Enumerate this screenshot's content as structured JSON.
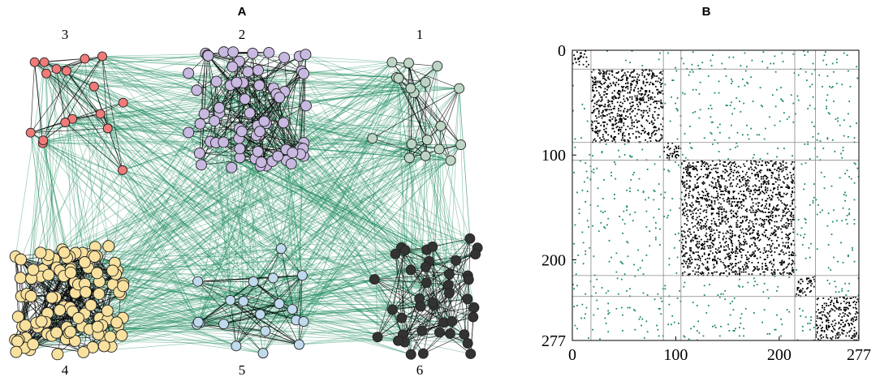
{
  "panels": [
    {
      "label": "A",
      "type": "network",
      "communities": [
        {
          "label": "1",
          "color": "#bcd4c3"
        },
        {
          "label": "2",
          "color": "#c8b9e1"
        },
        {
          "label": "3",
          "color": "#f07b78"
        },
        {
          "label": "4",
          "color": "#f8e19e"
        },
        {
          "label": "5",
          "color": "#bfdaec"
        },
        {
          "label": "6",
          "color": "#333333"
        }
      ],
      "intra_edge_color": "#000000",
      "inter_edge_color": "#1a8a5a"
    },
    {
      "label": "B",
      "type": "adjacency-matrix",
      "xlim": [
        0,
        277
      ],
      "ylim": [
        0,
        277
      ],
      "xticks": [
        0,
        100,
        200,
        277
      ],
      "yticks": [
        0,
        100,
        200,
        277
      ],
      "block_boundaries": [
        18,
        88,
        105,
        215,
        235
      ],
      "intra_color": "#000000",
      "inter_color": "#1a8a5a"
    }
  ]
}
